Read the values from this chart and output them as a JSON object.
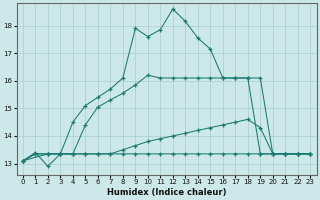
{
  "xlabel": "Humidex (Indice chaleur)",
  "background_color": "#cce8e8",
  "grid_color": "#aacccc",
  "line_color": "#1a7a6e",
  "ylim": [
    12.6,
    18.8
  ],
  "xlim": [
    0,
    23
  ],
  "yticks": [
    13,
    14,
    15,
    16,
    17,
    18
  ],
  "xticks": [
    0,
    1,
    2,
    3,
    4,
    5,
    6,
    7,
    8,
    9,
    10,
    11,
    12,
    13,
    14,
    15,
    16,
    17,
    18,
    19,
    20,
    21,
    22,
    23
  ],
  "line1_x": [
    0,
    1,
    2,
    3,
    4,
    5,
    6,
    7,
    8,
    9,
    10,
    11,
    12,
    13,
    14,
    15,
    16,
    17,
    18,
    19,
    20,
    21,
    22,
    23
  ],
  "line1_y": [
    13.1,
    13.4,
    12.9,
    13.35,
    13.35,
    13.35,
    13.35,
    13.35,
    13.35,
    13.35,
    13.35,
    13.35,
    13.35,
    13.35,
    13.35,
    13.35,
    13.35,
    13.35,
    13.35,
    13.35,
    13.35,
    13.35,
    13.35,
    13.35
  ],
  "line2_x": [
    0,
    1,
    2,
    3,
    4,
    5,
    6,
    7,
    8,
    9,
    10,
    11,
    12,
    13,
    14,
    15,
    16,
    17,
    18,
    19,
    20,
    21,
    22,
    23
  ],
  "line2_y": [
    13.1,
    13.35,
    13.35,
    13.35,
    13.35,
    13.35,
    13.35,
    13.35,
    13.5,
    13.65,
    13.8,
    13.9,
    14.0,
    14.1,
    14.2,
    14.3,
    14.4,
    14.5,
    14.6,
    14.3,
    13.35,
    13.35,
    13.35,
    13.35
  ],
  "line3_x": [
    0,
    1,
    2,
    3,
    4,
    5,
    6,
    7,
    8,
    9,
    10,
    11,
    12,
    13,
    14,
    15,
    16,
    17,
    18,
    19,
    20,
    21,
    22,
    23
  ],
  "line3_y": [
    13.1,
    13.35,
    13.35,
    13.35,
    13.35,
    14.4,
    15.05,
    15.3,
    15.55,
    15.85,
    16.2,
    16.1,
    16.1,
    16.1,
    16.1,
    16.1,
    16.1,
    16.1,
    16.1,
    16.1,
    13.35,
    13.35,
    13.35,
    13.35
  ],
  "line4_x": [
    0,
    2,
    3,
    4,
    5,
    6,
    7,
    8,
    9,
    10,
    11,
    12,
    13,
    14,
    15,
    16,
    17,
    18,
    19,
    20,
    21,
    22,
    23
  ],
  "line4_y": [
    13.1,
    13.35,
    13.35,
    14.5,
    15.1,
    15.4,
    15.7,
    16.1,
    17.9,
    17.6,
    17.85,
    18.6,
    18.15,
    17.55,
    17.15,
    16.1,
    16.1,
    16.1,
    13.35,
    13.35,
    13.35,
    13.35,
    13.35
  ]
}
